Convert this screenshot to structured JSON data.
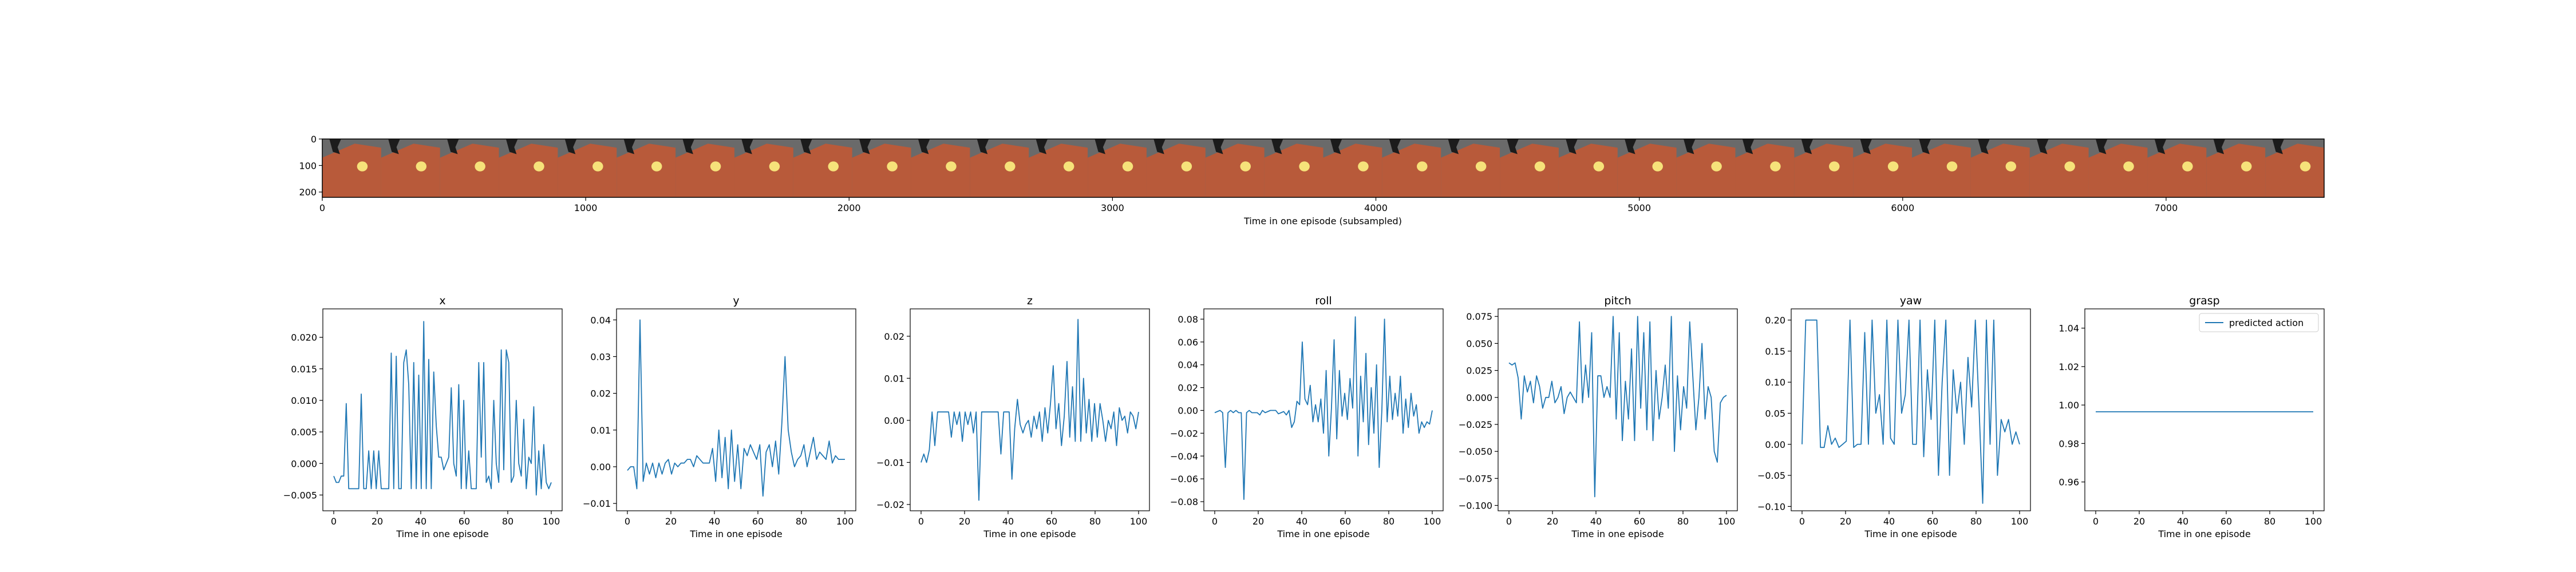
{
  "strip": {
    "xlabel": "Time in one episode (subsampled)",
    "x_ticks": [
      0,
      1000,
      2000,
      3000,
      4000,
      5000,
      6000,
      7000
    ],
    "xlim": [
      0,
      7600
    ],
    "y_ticks": [
      0,
      100,
      200
    ],
    "ylim": [
      0,
      220
    ],
    "frame_count": 34,
    "colors": {
      "background": "#6a6a6a",
      "table": "#b85a3a",
      "ball": "#f6e27a",
      "gripper": "#1c1c1c"
    }
  },
  "chart_data": [
    {
      "type": "line",
      "title": "x",
      "xlabel": "Time in one episode",
      "xlim": [
        -5,
        105
      ],
      "ylim": [
        -0.0075,
        0.0245
      ],
      "x_ticks": [
        0,
        20,
        40,
        60,
        80,
        100
      ],
      "y_ticks": [
        -0.005,
        0.0,
        0.005,
        0.01,
        0.015,
        0.02
      ],
      "y_tick_labels": [
        "−0.005",
        "0.000",
        "0.005",
        "0.010",
        "0.015",
        "0.020"
      ],
      "color": "#1f77b4",
      "values": [
        -0.002,
        -0.003,
        -0.003,
        -0.002,
        -0.002,
        0.0095,
        -0.004,
        -0.004,
        -0.004,
        -0.004,
        -0.004,
        0.011,
        -0.004,
        -0.004,
        0.002,
        -0.004,
        0.002,
        -0.004,
        0.002,
        -0.004,
        -0.004,
        -0.004,
        -0.004,
        0.0175,
        -0.004,
        0.017,
        -0.004,
        -0.004,
        0.016,
        0.018,
        0.0125,
        -0.004,
        0.016,
        -0.004,
        0.014,
        -0.004,
        0.0225,
        -0.004,
        0.0165,
        -0.004,
        0.0145,
        0.006,
        0.001,
        0.001,
        -0.001,
        0.0,
        0.001,
        0.012,
        0.0,
        -0.002,
        0.0125,
        -0.004,
        0.01,
        -0.004,
        0.002,
        -0.004,
        -0.004,
        -0.004,
        0.016,
        0.001,
        0.016,
        -0.003,
        -0.002,
        -0.004,
        0.01,
        0.0,
        -0.003,
        0.018,
        -0.001,
        0.018,
        0.016,
        -0.003,
        -0.002,
        0.01,
        0.0,
        -0.002,
        0.007,
        -0.004,
        0.001,
        0.0,
        0.009,
        -0.005,
        0.002,
        -0.004,
        0.003,
        -0.003,
        -0.004,
        -0.003
      ]
    },
    {
      "type": "line",
      "title": "y",
      "xlabel": "Time in one episode",
      "xlim": [
        -5,
        105
      ],
      "ylim": [
        -0.012,
        0.043
      ],
      "x_ticks": [
        0,
        20,
        40,
        60,
        80,
        100
      ],
      "y_ticks": [
        -0.01,
        0.0,
        0.01,
        0.02,
        0.03,
        0.04
      ],
      "y_tick_labels": [
        "−0.01",
        "0.00",
        "0.01",
        "0.02",
        "0.03",
        "0.04"
      ],
      "color": "#1f77b4",
      "values": [
        -0.001,
        0.0,
        0.0,
        -0.006,
        0.04,
        -0.004,
        0.001,
        -0.002,
        0.001,
        -0.003,
        0.001,
        -0.002,
        0.001,
        0.002,
        -0.002,
        0.001,
        0.0,
        0.001,
        0.001,
        0.002,
        0.002,
        0.0,
        0.003,
        0.002,
        0.001,
        0.001,
        0.001,
        0.005,
        -0.004,
        0.01,
        -0.003,
        0.008,
        -0.006,
        0.01,
        -0.004,
        0.006,
        -0.006,
        0.005,
        0.003,
        0.006,
        0.004,
        0.002,
        0.006,
        -0.008,
        0.004,
        0.006,
        0.0,
        0.007,
        -0.002,
        0.012,
        0.03,
        0.01,
        0.004,
        0.0,
        0.002,
        0.003,
        0.006,
        0.0,
        0.004,
        0.008,
        0.002,
        0.004,
        0.003,
        0.002,
        0.007,
        0.001,
        0.003,
        0.002,
        0.002,
        0.002
      ]
    },
    {
      "type": "line",
      "title": "z",
      "xlabel": "Time in one episode",
      "xlim": [
        -5,
        105
      ],
      "ylim": [
        -0.0215,
        0.0265
      ],
      "x_ticks": [
        0,
        20,
        40,
        60,
        80,
        100
      ],
      "y_ticks": [
        -0.02,
        -0.01,
        0.0,
        0.01,
        0.02
      ],
      "y_tick_labels": [
        "−0.02",
        "−0.01",
        "0.00",
        "0.01",
        "0.02"
      ],
      "color": "#1f77b4",
      "values": [
        -0.01,
        -0.008,
        -0.01,
        -0.007,
        0.002,
        -0.006,
        0.002,
        0.002,
        0.002,
        0.002,
        0.002,
        -0.004,
        0.002,
        -0.001,
        0.002,
        -0.005,
        0.002,
        -0.001,
        0.002,
        -0.003,
        0.002,
        -0.019,
        0.002,
        0.002,
        0.002,
        0.002,
        0.002,
        0.002,
        0.002,
        -0.008,
        0.002,
        0.002,
        0.002,
        -0.014,
        -0.002,
        0.005,
        -0.001,
        -0.003,
        -0.001,
        0.0,
        -0.004,
        0.001,
        -0.002,
        0.002,
        -0.005,
        0.003,
        -0.003,
        0.004,
        0.013,
        -0.002,
        0.004,
        -0.006,
        0.001,
        0.014,
        -0.004,
        0.008,
        -0.005,
        0.024,
        -0.005,
        0.01,
        -0.003,
        0.005,
        -0.005,
        0.004,
        -0.004,
        0.004,
        0.0,
        -0.005,
        0.0,
        -0.002,
        0.002,
        -0.006,
        0.003,
        0.0,
        0.001,
        -0.003,
        0.002,
        0.001,
        -0.002,
        0.002
      ]
    },
    {
      "type": "line",
      "title": "roll",
      "xlabel": "Time in one episode",
      "xlim": [
        -5,
        105
      ],
      "ylim": [
        -0.088,
        0.089
      ],
      "x_ticks": [
        0,
        20,
        40,
        60,
        80,
        100
      ],
      "y_ticks": [
        -0.08,
        -0.06,
        -0.04,
        -0.02,
        0.0,
        0.02,
        0.04,
        0.06,
        0.08
      ],
      "y_tick_labels": [
        "−0.08",
        "−0.06",
        "−0.04",
        "−0.02",
        "0.00",
        "0.02",
        "0.04",
        "0.06",
        "0.08"
      ],
      "color": "#1f77b4",
      "values": [
        -0.002,
        -0.001,
        0.0,
        -0.002,
        -0.05,
        -0.002,
        0.0,
        -0.002,
        0.0,
        -0.002,
        -0.002,
        -0.078,
        -0.002,
        0.0,
        -0.002,
        -0.002,
        -0.002,
        -0.004,
        0.0,
        -0.002,
        -0.001,
        0.0,
        0.0,
        0.0,
        -0.003,
        -0.002,
        -0.001,
        -0.004,
        0.0,
        -0.015,
        -0.01,
        0.008,
        0.005,
        0.06,
        0.01,
        0.005,
        0.022,
        -0.01,
        0.005,
        -0.01,
        0.01,
        -0.02,
        0.035,
        -0.04,
        0.002,
        0.062,
        -0.025,
        0.035,
        -0.005,
        0.015,
        -0.008,
        0.028,
        0.002,
        0.082,
        -0.04,
        0.03,
        -0.01,
        0.05,
        -0.03,
        0.02,
        -0.02,
        0.04,
        -0.05,
        0.0,
        0.08,
        -0.01,
        0.03,
        -0.008,
        0.015,
        -0.005,
        0.03,
        -0.02,
        0.01,
        -0.015,
        0.015,
        -0.005,
        0.005,
        -0.02,
        -0.01,
        -0.015,
        -0.01,
        -0.012,
        0.0
      ]
    },
    {
      "type": "line",
      "title": "pitch",
      "xlabel": "Time in one episode",
      "xlim": [
        -5,
        105
      ],
      "ylim": [
        -0.105,
        0.082
      ],
      "x_ticks": [
        0,
        20,
        40,
        60,
        80,
        100
      ],
      "y_ticks": [
        -0.1,
        -0.075,
        -0.05,
        -0.025,
        0.0,
        0.025,
        0.05,
        0.075
      ],
      "y_tick_labels": [
        "−0.100",
        "−0.075",
        "−0.050",
        "−0.025",
        "0.000",
        "0.025",
        "0.050",
        "0.075"
      ],
      "color": "#1f77b4",
      "values": [
        0.032,
        0.03,
        0.032,
        0.018,
        -0.02,
        0.02,
        0.005,
        0.015,
        -0.005,
        0.02,
        0.01,
        -0.01,
        0.0,
        0.0,
        0.015,
        -0.005,
        0.0,
        0.01,
        -0.015,
        0.0,
        0.005,
        0.0,
        -0.005,
        0.07,
        -0.005,
        0.03,
        0.0,
        0.06,
        -0.092,
        0.02,
        0.02,
        0.0,
        0.01,
        0.0,
        0.075,
        -0.02,
        0.06,
        -0.04,
        0.015,
        -0.02,
        0.045,
        -0.04,
        0.075,
        -0.01,
        0.06,
        -0.03,
        0.07,
        -0.04,
        0.025,
        -0.02,
        0.0,
        0.03,
        -0.01,
        0.075,
        -0.05,
        0.02,
        -0.03,
        0.01,
        -0.01,
        0.07,
        0.02,
        -0.03,
        0.0,
        0.05,
        -0.02,
        0.01,
        0.0,
        -0.05,
        -0.06,
        -0.005,
        0.0,
        0.002
      ]
    },
    {
      "type": "line",
      "title": "yaw",
      "xlabel": "Time in one episode",
      "xlim": [
        -5,
        105
      ],
      "ylim": [
        -0.107,
        0.218
      ],
      "x_ticks": [
        0,
        20,
        40,
        60,
        80,
        100
      ],
      "y_ticks": [
        -0.1,
        -0.05,
        0.0,
        0.05,
        0.1,
        0.15,
        0.2
      ],
      "y_tick_labels": [
        "−0.10",
        "−0.05",
        "0.00",
        "0.05",
        "0.10",
        "0.15",
        "0.20"
      ],
      "color": "#1f77b4",
      "values": [
        0.0,
        0.2,
        0.2,
        0.2,
        0.2,
        -0.005,
        -0.005,
        0.03,
        0.0,
        0.01,
        -0.005,
        0.0,
        0.005,
        0.2,
        -0.005,
        0.0,
        0.0,
        0.18,
        0.0,
        0.2,
        0.05,
        0.08,
        0.0,
        0.2,
        0.01,
        0.0,
        0.2,
        0.05,
        0.08,
        0.2,
        0.0,
        0.0,
        0.2,
        -0.02,
        0.12,
        0.04,
        0.2,
        -0.05,
        0.1,
        0.2,
        -0.05,
        0.12,
        0.05,
        0.1,
        0.0,
        0.14,
        0.06,
        0.2,
        0.06,
        -0.095,
        0.2,
        0.0,
        0.2,
        -0.05,
        0.04,
        0.02,
        0.04,
        0.0,
        0.02,
        0.0
      ]
    },
    {
      "type": "line",
      "title": "grasp",
      "xlabel": "Time in one episode",
      "xlim": [
        -5,
        105
      ],
      "ylim": [
        0.945,
        1.05
      ],
      "x_ticks": [
        0,
        20,
        40,
        60,
        80,
        100
      ],
      "y_ticks": [
        0.96,
        0.98,
        1.0,
        1.02,
        1.04
      ],
      "y_tick_labels": [
        "0.96",
        "0.98",
        "1.00",
        "1.02",
        "1.04"
      ],
      "color": "#1f77b4",
      "legend": "predicted action",
      "legend_position": "top-right",
      "values": [
        0.9965,
        0.9965
      ]
    }
  ]
}
